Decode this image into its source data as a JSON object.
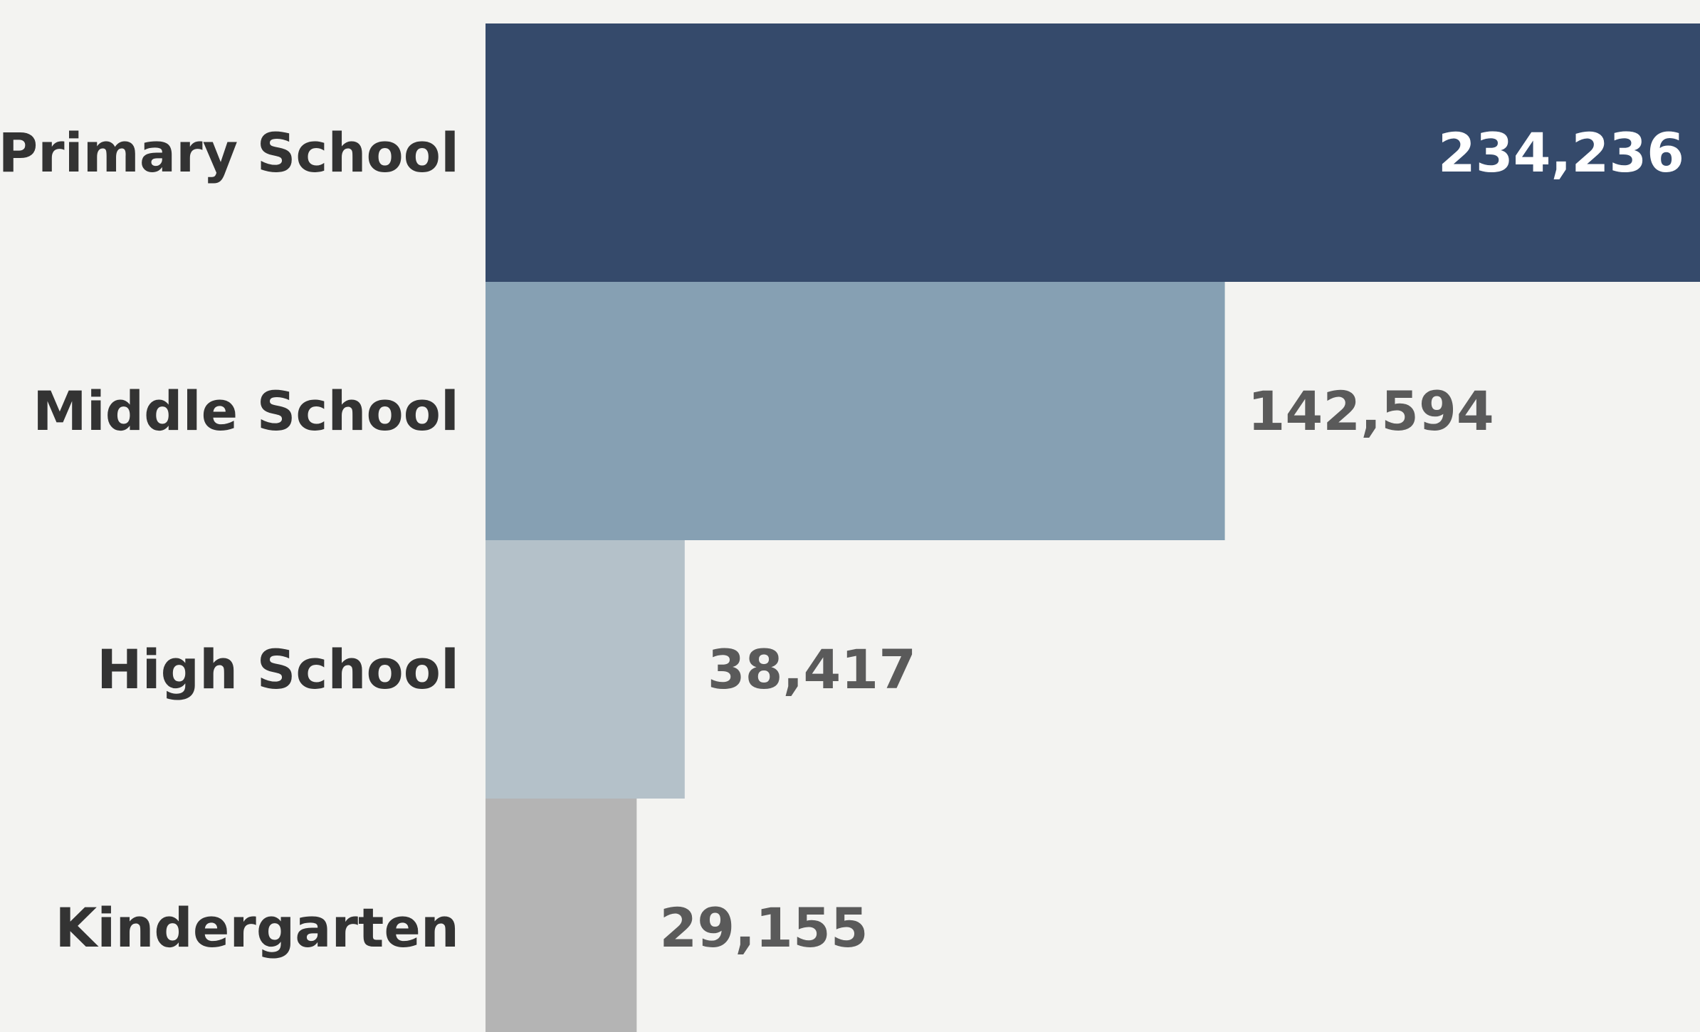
{
  "chart_data": {
    "type": "bar",
    "orientation": "horizontal",
    "title": "",
    "xlabel": "",
    "ylabel": "",
    "categories": [
      "Primary School",
      "Middle School",
      "High School",
      "Kindergarten"
    ],
    "values": [
      234236,
      142594,
      38417,
      29155
    ],
    "value_labels": [
      "234,236",
      "142,594",
      "38,417",
      "29,155"
    ],
    "xlim": [
      0,
      234236
    ],
    "grid": false,
    "legend": "none",
    "colors": [
      "#354a6b",
      "#86a0b3",
      "#b4c1c9",
      "#b4b4b4"
    ],
    "label_colors": [
      "#ffffff",
      "#5a5a5a",
      "#5a5a5a",
      "#5a5a5a"
    ],
    "background": "#f3f3f1"
  }
}
